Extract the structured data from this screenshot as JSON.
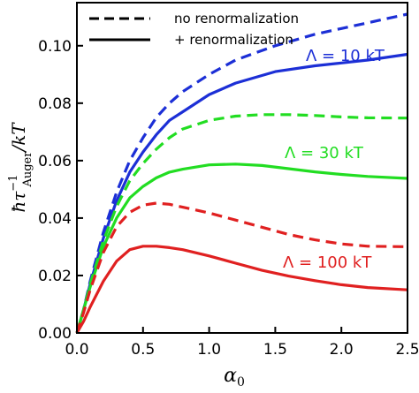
{
  "chart_data": {
    "type": "line",
    "xlabel": "α",
    "xlabel_sub": "0",
    "ylabel_main": "ħτ",
    "ylabel_sup": "−1",
    "ylabel_sub": "Auger",
    "ylabel_tail": "/kT",
    "xlim": [
      0,
      2.5
    ],
    "ylim": [
      0,
      0.115
    ],
    "x_ticks": [
      "0.0",
      "0.5",
      "1.0",
      "1.5",
      "2.0",
      "2.5"
    ],
    "y_ticks": [
      "0.00",
      "0.02",
      "0.04",
      "0.06",
      "0.08",
      "0.10"
    ],
    "grid": false,
    "legend_position": "top",
    "legend": [
      {
        "label": "no renormalization",
        "style": "dashed"
      },
      {
        "label": "+ renormalization",
        "style": "solid"
      }
    ],
    "annotations": [
      {
        "text": "Λ = 10 kT",
        "color": "#1c2fd6"
      },
      {
        "text": "Λ = 30 kT",
        "color": "#22dd22"
      },
      {
        "text": "Λ = 100 kT",
        "color": "#e02020"
      }
    ],
    "series": [
      {
        "color": "#1c2fd6",
        "style": "dashed",
        "x": [
          0,
          0.05,
          0.1,
          0.2,
          0.3,
          0.4,
          0.5,
          0.6,
          0.7,
          0.8,
          1.0,
          1.2,
          1.5,
          1.8,
          2.0,
          2.2,
          2.5
        ],
        "y": [
          0,
          0.008,
          0.018,
          0.035,
          0.049,
          0.06,
          0.068,
          0.075,
          0.08,
          0.084,
          0.09,
          0.095,
          0.1,
          0.104,
          0.106,
          0.108,
          0.111
        ]
      },
      {
        "color": "#1c2fd6",
        "style": "solid",
        "x": [
          0,
          0.05,
          0.1,
          0.2,
          0.3,
          0.4,
          0.5,
          0.6,
          0.7,
          0.8,
          1.0,
          1.2,
          1.5,
          1.8,
          2.0,
          2.2,
          2.5
        ],
        "y": [
          0,
          0.008,
          0.017,
          0.033,
          0.046,
          0.056,
          0.063,
          0.069,
          0.074,
          0.077,
          0.083,
          0.087,
          0.091,
          0.093,
          0.094,
          0.095,
          0.097
        ]
      },
      {
        "color": "#22dd22",
        "style": "dashed",
        "x": [
          0,
          0.05,
          0.1,
          0.2,
          0.3,
          0.4,
          0.5,
          0.6,
          0.7,
          0.8,
          1.0,
          1.2,
          1.4,
          1.6,
          1.8,
          2.0,
          2.2,
          2.5
        ],
        "y": [
          0,
          0.008,
          0.017,
          0.032,
          0.044,
          0.053,
          0.059,
          0.064,
          0.068,
          0.071,
          0.074,
          0.0755,
          0.076,
          0.076,
          0.0757,
          0.0752,
          0.0749,
          0.0748
        ]
      },
      {
        "color": "#22dd22",
        "style": "solid",
        "x": [
          0,
          0.05,
          0.1,
          0.2,
          0.3,
          0.4,
          0.5,
          0.6,
          0.7,
          0.8,
          1.0,
          1.2,
          1.4,
          1.6,
          1.8,
          2.0,
          2.2,
          2.5
        ],
        "y": [
          0,
          0.008,
          0.016,
          0.03,
          0.04,
          0.047,
          0.051,
          0.054,
          0.056,
          0.057,
          0.0585,
          0.0588,
          0.0583,
          0.0572,
          0.0561,
          0.0552,
          0.0545,
          0.0538
        ]
      },
      {
        "color": "#e02020",
        "style": "dashed",
        "x": [
          0,
          0.05,
          0.1,
          0.2,
          0.3,
          0.4,
          0.5,
          0.6,
          0.7,
          0.8,
          1.0,
          1.2,
          1.4,
          1.6,
          1.8,
          2.0,
          2.2,
          2.5
        ],
        "y": [
          0,
          0.007,
          0.015,
          0.028,
          0.037,
          0.042,
          0.0445,
          0.0452,
          0.0448,
          0.0438,
          0.0418,
          0.0393,
          0.0368,
          0.0343,
          0.0324,
          0.031,
          0.0302,
          0.03
        ]
      },
      {
        "color": "#e02020",
        "style": "solid",
        "x": [
          0,
          0.05,
          0.1,
          0.2,
          0.3,
          0.4,
          0.5,
          0.6,
          0.7,
          0.8,
          1.0,
          1.2,
          1.4,
          1.6,
          1.8,
          2.0,
          2.2,
          2.5
        ],
        "y": [
          0,
          0.004,
          0.009,
          0.018,
          0.025,
          0.029,
          0.0302,
          0.0302,
          0.0297,
          0.029,
          0.0268,
          0.0243,
          0.0218,
          0.0198,
          0.0182,
          0.0168,
          0.0158,
          0.015
        ]
      }
    ]
  }
}
